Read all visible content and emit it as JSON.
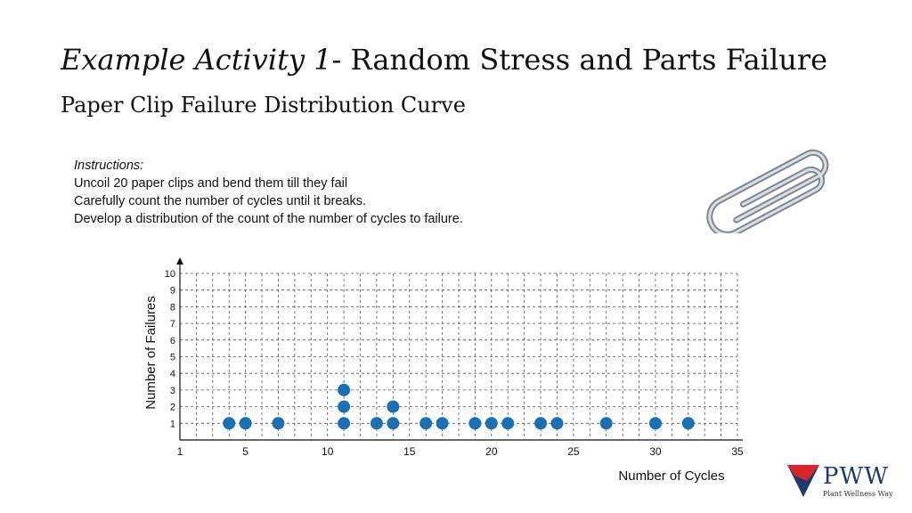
{
  "slide": {
    "title_italic": "Example Activity 1",
    "title_rest": "- Random Stress and Parts Failure",
    "subtitle": "Paper Clip Failure Distribution Curve"
  },
  "instructions": {
    "heading": "Instructions:",
    "lines": [
      "Uncoil 20 paper clips and bend them till they fail",
      "Carefully count the number  of cycles until it breaks.",
      "Develop a distribution of the count of the number  of cycles to failure."
    ]
  },
  "logo": {
    "text": "PWW",
    "subtext": "Plant Wellness Way",
    "colors": {
      "red": "#d9262c",
      "blue": "#1f3a6b"
    }
  },
  "chart_data": {
    "type": "scatter",
    "xlabel": "Number  of Cycles",
    "ylabel": "Number  of Failures",
    "xlim": [
      1,
      35
    ],
    "ylim": [
      0,
      10
    ],
    "x_ticks": [
      1,
      5,
      10,
      15,
      20,
      25,
      30,
      35
    ],
    "y_ticks": [
      1,
      2,
      3,
      4,
      5,
      6,
      7,
      8,
      9,
      10
    ],
    "grid": true,
    "grid_style": "dashed",
    "marker_color": "#1a6fb5",
    "points": [
      {
        "x": 4,
        "y": 1
      },
      {
        "x": 5,
        "y": 1
      },
      {
        "x": 7,
        "y": 1
      },
      {
        "x": 11,
        "y": 1
      },
      {
        "x": 11,
        "y": 2
      },
      {
        "x": 11,
        "y": 3
      },
      {
        "x": 13,
        "y": 1
      },
      {
        "x": 14,
        "y": 1
      },
      {
        "x": 14,
        "y": 2
      },
      {
        "x": 16,
        "y": 1
      },
      {
        "x": 17,
        "y": 1
      },
      {
        "x": 19,
        "y": 1
      },
      {
        "x": 20,
        "y": 1
      },
      {
        "x": 21,
        "y": 1
      },
      {
        "x": 23,
        "y": 1
      },
      {
        "x": 24,
        "y": 1
      },
      {
        "x": 27,
        "y": 1
      },
      {
        "x": 30,
        "y": 1
      },
      {
        "x": 32,
        "y": 1
      }
    ]
  }
}
